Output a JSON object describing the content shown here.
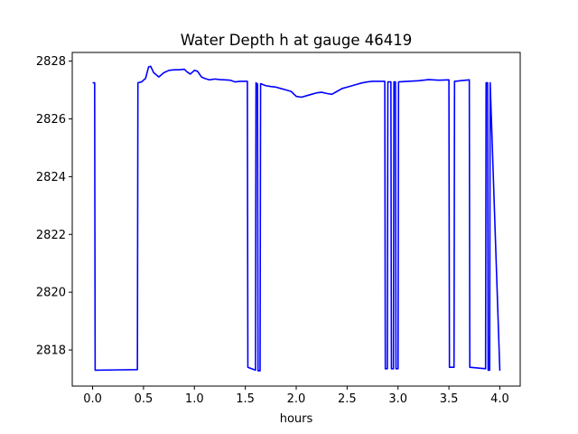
{
  "chart_data": {
    "type": "line",
    "title": "Water Depth h at gauge 46419",
    "xlabel": "hours",
    "ylabel": "",
    "xlim": [
      -0.2,
      4.2
    ],
    "ylim": [
      2816.75,
      2828.3
    ],
    "xticks": [
      0.0,
      0.5,
      1.0,
      1.5,
      2.0,
      2.5,
      3.0,
      3.5,
      4.0
    ],
    "xtick_labels": [
      "0.0",
      "0.5",
      "1.0",
      "1.5",
      "2.0",
      "2.5",
      "3.0",
      "3.5",
      "4.0"
    ],
    "yticks": [
      2818,
      2820,
      2822,
      2824,
      2826,
      2828
    ],
    "ytick_labels": [
      "2818",
      "2820",
      "2822",
      "2824",
      "2826",
      "2828"
    ],
    "grid": false,
    "series": [
      {
        "color": "#0000ff",
        "x": [
          0.0,
          0.02,
          0.025,
          0.44,
          0.445,
          0.48,
          0.52,
          0.55,
          0.57,
          0.6,
          0.65,
          0.7,
          0.75,
          0.8,
          0.85,
          0.9,
          0.93,
          0.96,
          1.0,
          1.03,
          1.07,
          1.1,
          1.15,
          1.2,
          1.25,
          1.3,
          1.35,
          1.4,
          1.45,
          1.5,
          1.52,
          1.525,
          1.6,
          1.605,
          1.62,
          1.625,
          1.645,
          1.65,
          1.7,
          1.75,
          1.8,
          1.85,
          1.9,
          1.95,
          2.0,
          2.05,
          2.1,
          2.15,
          2.2,
          2.25,
          2.3,
          2.35,
          2.4,
          2.45,
          2.5,
          2.55,
          2.6,
          2.65,
          2.7,
          2.75,
          2.8,
          2.85,
          2.87,
          2.875,
          2.895,
          2.9,
          2.93,
          2.935,
          2.955,
          2.96,
          2.975,
          2.98,
          3.0,
          3.005,
          3.1,
          3.2,
          3.3,
          3.4,
          3.5,
          3.505,
          3.55,
          3.555,
          3.7,
          3.705,
          3.86,
          3.865,
          3.88,
          3.885,
          3.9,
          3.905,
          4.0
        ],
        "y": [
          2827.25,
          2827.25,
          2817.3,
          2817.32,
          2827.25,
          2827.28,
          2827.4,
          2827.8,
          2827.82,
          2827.6,
          2827.45,
          2827.6,
          2827.68,
          2827.7,
          2827.7,
          2827.72,
          2827.62,
          2827.55,
          2827.68,
          2827.65,
          2827.45,
          2827.4,
          2827.35,
          2827.38,
          2827.36,
          2827.35,
          2827.34,
          2827.28,
          2827.3,
          2827.3,
          2827.3,
          2817.4,
          2817.3,
          2827.25,
          2827.2,
          2817.28,
          2817.28,
          2827.22,
          2827.15,
          2827.12,
          2827.1,
          2827.05,
          2827.0,
          2826.95,
          2826.78,
          2826.75,
          2826.8,
          2826.85,
          2826.9,
          2826.92,
          2826.88,
          2826.85,
          2826.95,
          2827.05,
          2827.1,
          2827.15,
          2827.2,
          2827.25,
          2827.28,
          2827.3,
          2827.3,
          2827.3,
          2827.3,
          2817.35,
          2817.35,
          2827.28,
          2827.28,
          2817.35,
          2817.35,
          2827.28,
          2827.28,
          2817.35,
          2817.35,
          2827.28,
          2827.3,
          2827.32,
          2827.36,
          2827.34,
          2827.35,
          2817.4,
          2817.4,
          2827.3,
          2827.35,
          2817.4,
          2817.35,
          2827.25,
          2827.25,
          2817.3,
          2817.3,
          2827.25,
          2817.28
        ]
      }
    ]
  }
}
